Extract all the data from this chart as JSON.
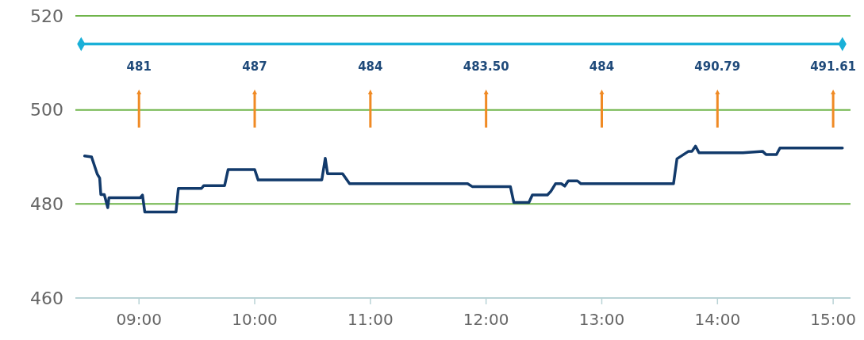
{
  "chart_data": {
    "type": "line",
    "xlim": [
      8.45,
      15.15
    ],
    "ylim": [
      460,
      520
    ],
    "yticks": [
      460,
      480,
      500,
      520
    ],
    "xticks": [
      {
        "value": 9,
        "label": "09:00"
      },
      {
        "value": 10,
        "label": "10:00"
      },
      {
        "value": 11,
        "label": "11:00"
      },
      {
        "value": 12,
        "label": "12:00"
      },
      {
        "value": 13,
        "label": "13:00"
      },
      {
        "value": 14,
        "label": "14:00"
      },
      {
        "value": 15,
        "label": "15:00"
      }
    ],
    "grid": "y",
    "marker": "none",
    "line_style": "solid",
    "series": [
      {
        "color": "#1ab0d8",
        "marker": "diamond",
        "x": [
          8.5,
          15.08
        ],
        "values": [
          514,
          514
        ]
      },
      {
        "color": "#123a6b",
        "x": [
          8.53,
          8.59,
          8.64,
          8.66,
          8.67,
          8.7,
          8.73,
          8.74,
          9.01,
          9.03,
          9.05,
          9.32,
          9.34,
          9.54,
          9.56,
          9.74,
          9.77,
          10.0,
          10.03,
          10.58,
          10.61,
          10.63,
          10.76,
          10.82,
          11.84,
          11.88,
          12.21,
          12.24,
          12.37,
          12.4,
          12.53,
          12.56,
          12.6,
          12.65,
          12.68,
          12.71,
          12.79,
          12.82,
          13.62,
          13.65,
          13.75,
          13.78,
          13.81,
          13.84,
          14.22,
          14.39,
          14.42,
          14.51,
          14.54,
          15.08
        ],
        "values": [
          490.2,
          490,
          486.3,
          485.5,
          482,
          482,
          479.2,
          481.3,
          481.3,
          481.9,
          478.3,
          478.3,
          483.3,
          483.3,
          483.9,
          483.9,
          487.3,
          487.3,
          485.1,
          485.1,
          489.7,
          486.4,
          486.4,
          484.3,
          484.3,
          483.7,
          483.7,
          480.3,
          480.3,
          481.9,
          481.9,
          482.7,
          484.3,
          484.3,
          483.8,
          484.9,
          484.9,
          484.3,
          484.3,
          489.6,
          491.2,
          491.2,
          492.3,
          490.9,
          490.9,
          491.2,
          490.5,
          490.5,
          491.9,
          491.9
        ]
      }
    ],
    "annotations": [
      {
        "text": "481",
        "x": 9,
        "y": 504
      },
      {
        "text": "487",
        "x": 10,
        "y": 504
      },
      {
        "text": "484",
        "x": 11,
        "y": 504
      },
      {
        "text": "483.50",
        "x": 12,
        "y": 504
      },
      {
        "text": "484",
        "x": 13,
        "y": 504
      },
      {
        "text": "490.79",
        "x": 14,
        "y": 504
      },
      {
        "text": "491.61",
        "x": 15,
        "y": 504
      }
    ]
  }
}
